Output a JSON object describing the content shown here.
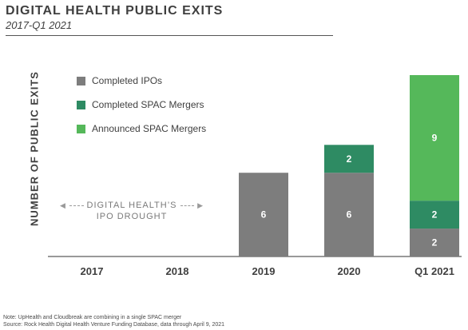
{
  "title": "DIGITAL HEALTH PUBLIC EXITS",
  "subtitle": "2017-Q1 2021",
  "annotation": {
    "line1": "DIGITAL HEALTH’S",
    "line2": "IPO DROUGHT"
  },
  "notes": {
    "note": "Note: UpHealth and Cloudbreak are combining in a single SPAC merger",
    "source": "Source: Rock Health Digital Health Venture Funding Database, data through April 9, 2021"
  },
  "colors": {
    "ipo": "#7d7d7d",
    "completed_spac": "#2e8b63",
    "announced_spac": "#55b85a",
    "label": "#ffffff"
  },
  "chart_data": {
    "type": "bar",
    "stacked": true,
    "title": "DIGITAL HEALTH PUBLIC EXITS",
    "subtitle": "2017-Q1 2021",
    "xlabel": "",
    "ylabel": "NUMBER OF PUBLIC EXITS",
    "categories": [
      "2017",
      "2018",
      "2019",
      "2020",
      "Q1 2021"
    ],
    "ylim": [
      0,
      13
    ],
    "grid": false,
    "legend_position": "top-left",
    "series": [
      {
        "name": "Completed IPOs",
        "values": [
          0,
          0,
          6,
          6,
          2
        ]
      },
      {
        "name": "Completed SPAC Mergers",
        "values": [
          0,
          0,
          0,
          2,
          2
        ]
      },
      {
        "name": "Announced SPAC Mergers",
        "values": [
          0,
          0,
          0,
          0,
          9
        ]
      }
    ]
  }
}
